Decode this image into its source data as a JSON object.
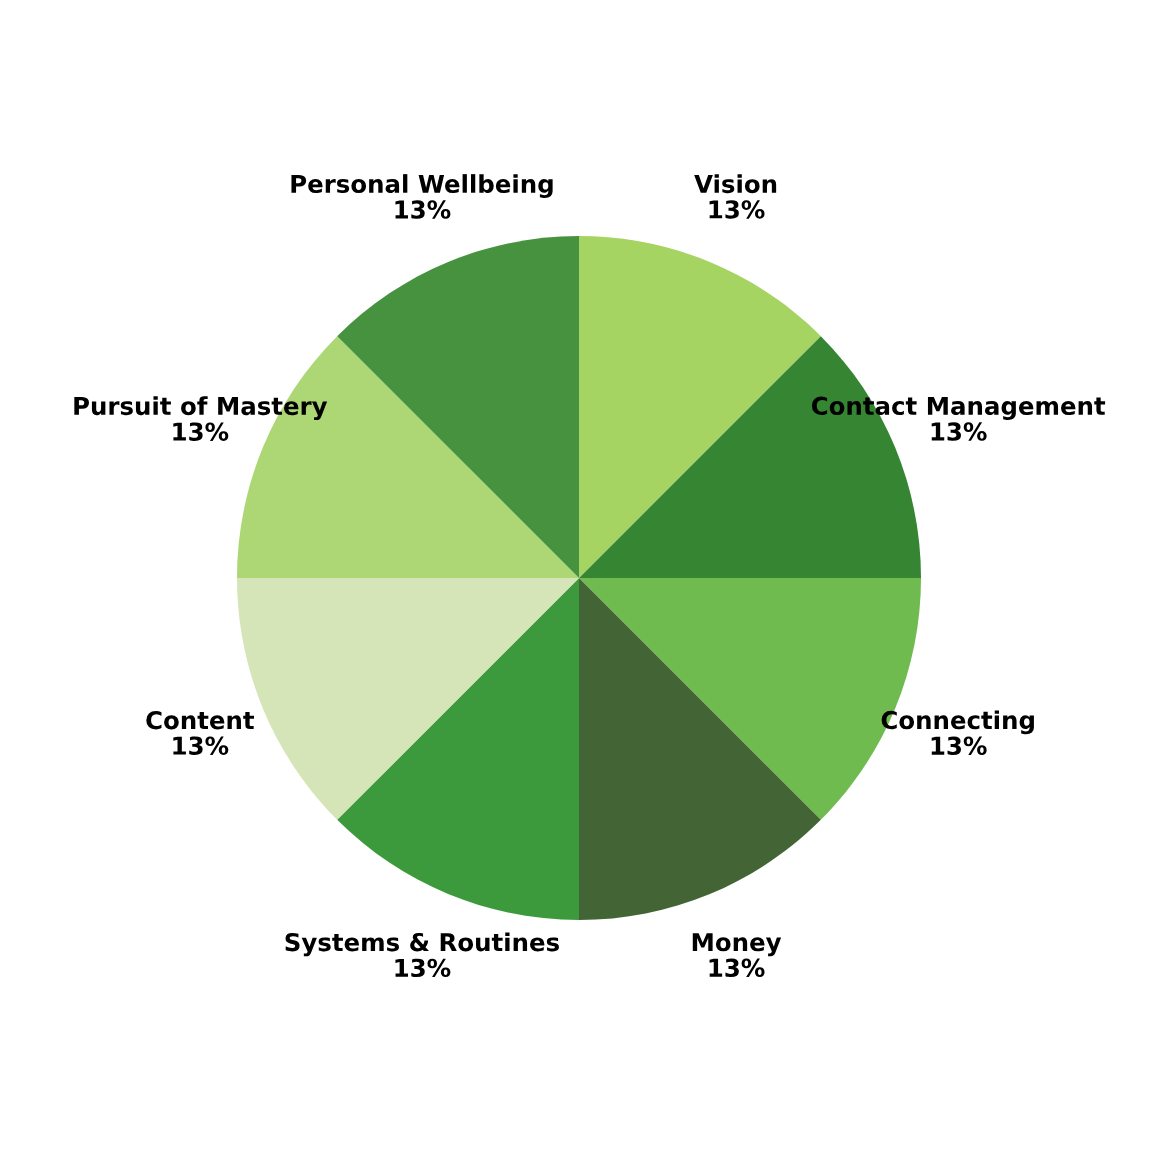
{
  "chart_data": {
    "type": "pie",
    "categories": [
      "Vision",
      "Contact Management",
      "Connecting",
      "Money",
      "Systems & Routines",
      "Content",
      "Pursuit of Mastery",
      "Personal Wellbeing"
    ],
    "values": [
      13,
      13,
      13,
      13,
      13,
      13,
      13,
      13
    ],
    "value_labels": [
      "13%",
      "13%",
      "13%",
      "13%",
      "13%",
      "13%",
      "13%",
      "13%"
    ],
    "colors": [
      "#a5d462",
      "#358533",
      "#6fbb4f",
      "#436535",
      "#3d9a3c",
      "#d6e5b8",
      "#acd774",
      "#46923f"
    ],
    "legend": false
  }
}
